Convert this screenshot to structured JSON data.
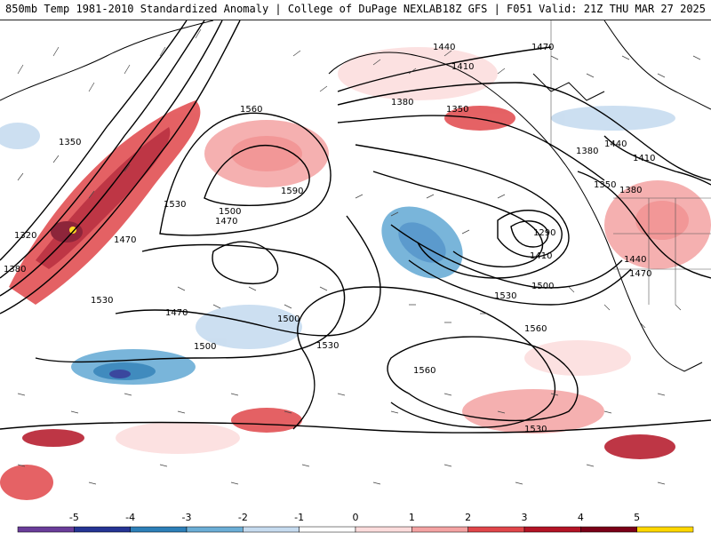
{
  "header": {
    "title_left": "850mb Temp 1981-2010 Standardized Anomaly | College of DuPage NEXLAB",
    "title_right": "18Z GFS | F051 Valid: 21Z THU MAR 27 2025"
  },
  "contour_labels": [
    "1350",
    "1320",
    "1380",
    "1470",
    "1530",
    "1560",
    "1590",
    "1530",
    "1500",
    "1470",
    "1470",
    "1500",
    "1500",
    "1530",
    "1440",
    "1410",
    "1380",
    "1350",
    "1290",
    "1410",
    "1500",
    "1530",
    "1560",
    "1560",
    "1530",
    "1470",
    "1440",
    "1410",
    "1380",
    "1350",
    "1380",
    "1440",
    "1470"
  ],
  "legend": {
    "ticks": [
      "-5",
      "-4",
      "-3",
      "-2",
      "-1",
      "0",
      "1",
      "2",
      "3",
      "4",
      "5"
    ],
    "colors": [
      "#6a3d9a",
      "#253494",
      "#2c7fb8",
      "#6baed6",
      "#c6dbef",
      "#ffffff",
      "#fcdcdc",
      "#f4a3a3",
      "#e0464a",
      "#b31325",
      "#7a0018",
      "#ffd700"
    ]
  }
}
